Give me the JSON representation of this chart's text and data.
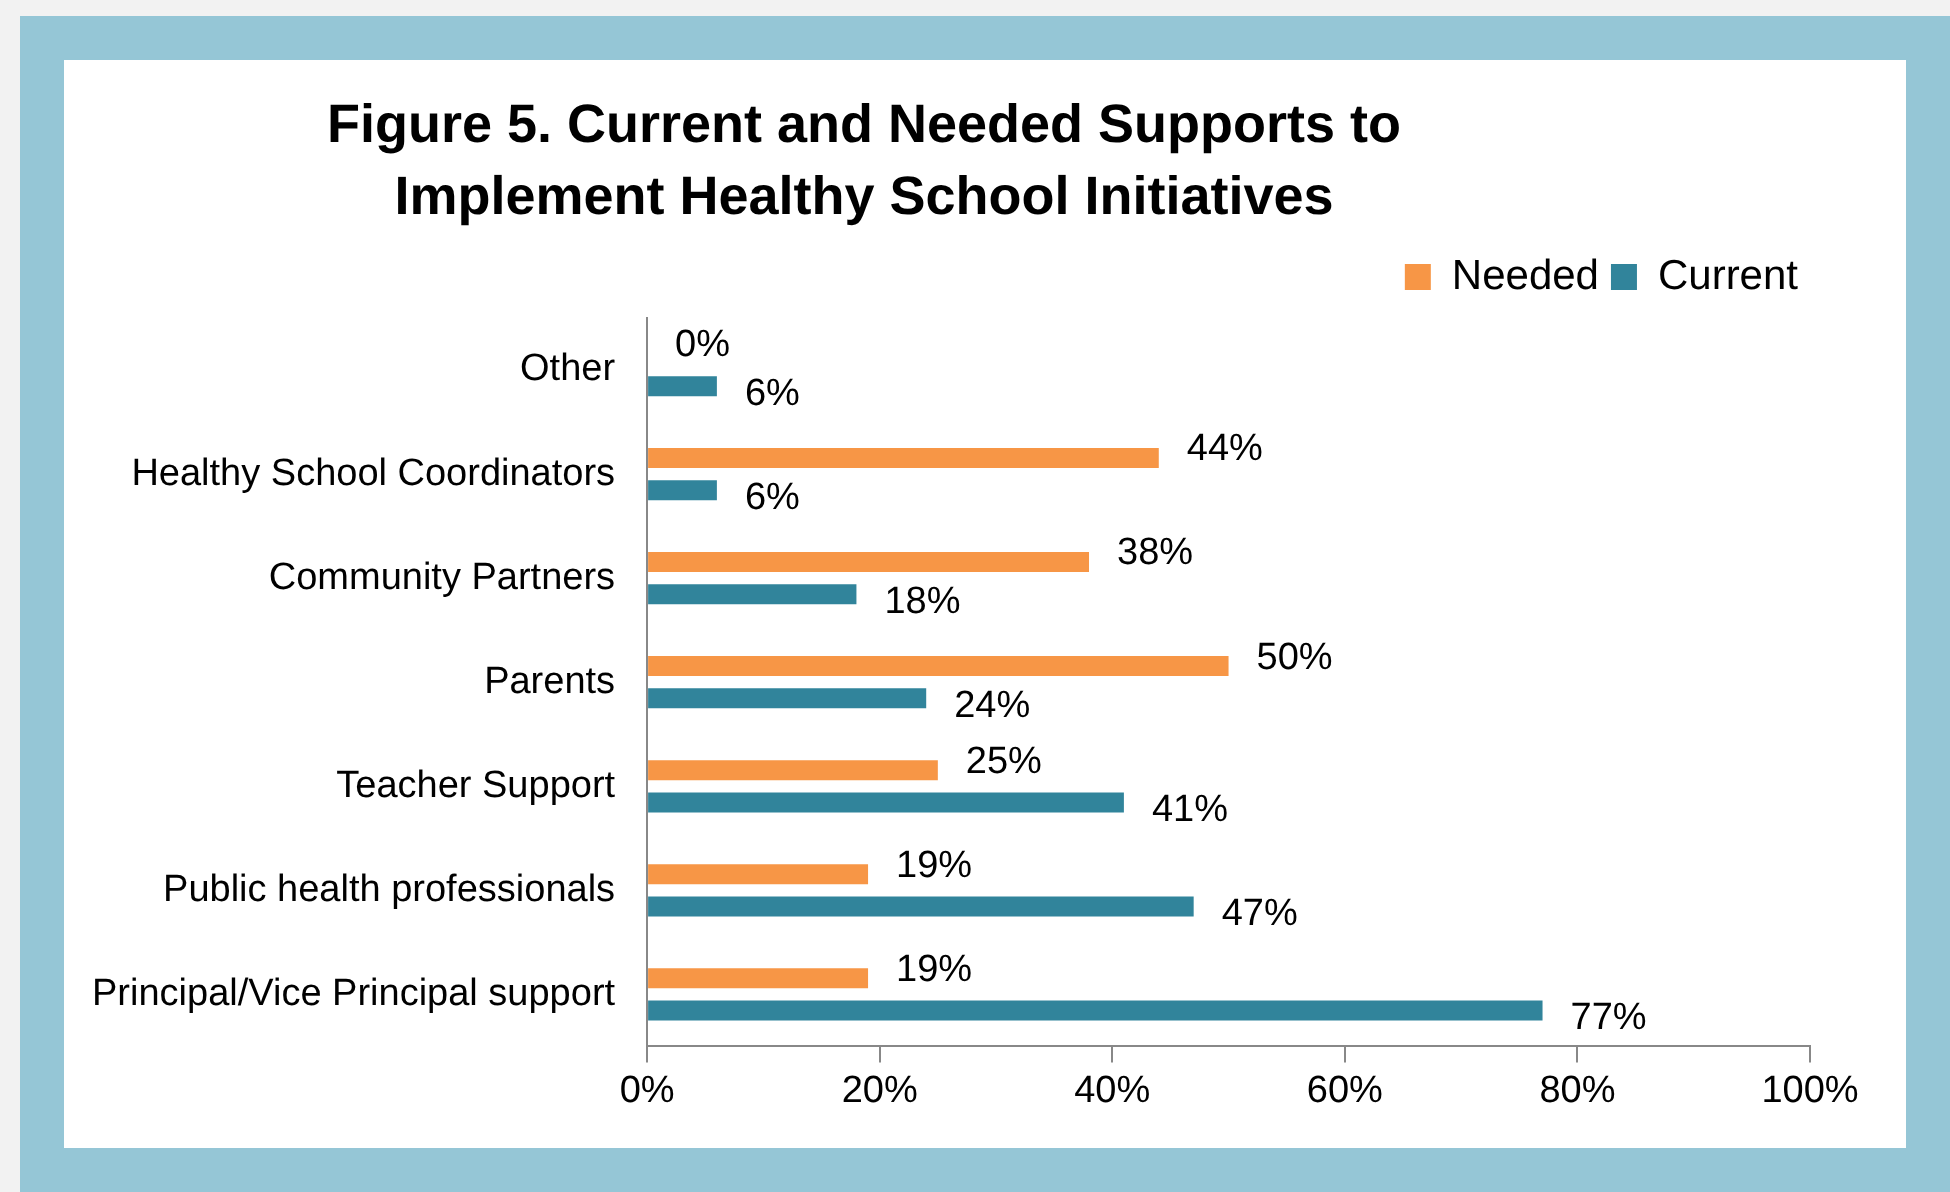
{
  "chart_data": {
    "type": "bar",
    "orientation": "horizontal",
    "title": "Figure 5. Current and Needed Supports to Implement Healthy School Initiatives",
    "categories": [
      "Other",
      "Healthy School Coordinators",
      "Community Partners",
      "Parents",
      "Teacher Support",
      "Public health professionals",
      "Principal/Vice Principal support"
    ],
    "series": [
      {
        "name": "Needed",
        "color": "#f79646",
        "values": [
          0,
          44,
          38,
          50,
          25,
          19,
          19
        ],
        "value_labels": [
          "0%",
          "44%",
          "38%",
          "50%",
          "25%",
          "19%",
          "19%"
        ]
      },
      {
        "name": "Current",
        "color": "#31849b",
        "values": [
          6,
          6,
          18,
          24,
          41,
          47,
          77
        ],
        "value_labels": [
          "6%",
          "6%",
          "18%",
          "24%",
          "41%",
          "47%",
          "77%"
        ]
      }
    ],
    "xlim": [
      0,
      100
    ],
    "xticks": [
      {
        "value": 0,
        "label": "0%"
      },
      {
        "value": 20,
        "label": "20%"
      },
      {
        "value": 40,
        "label": "40%"
      },
      {
        "value": 60,
        "label": "60%"
      },
      {
        "value": 80,
        "label": "80%"
      },
      {
        "value": 100,
        "label": "100%"
      }
    ],
    "grid": false,
    "legend": "top right"
  }
}
